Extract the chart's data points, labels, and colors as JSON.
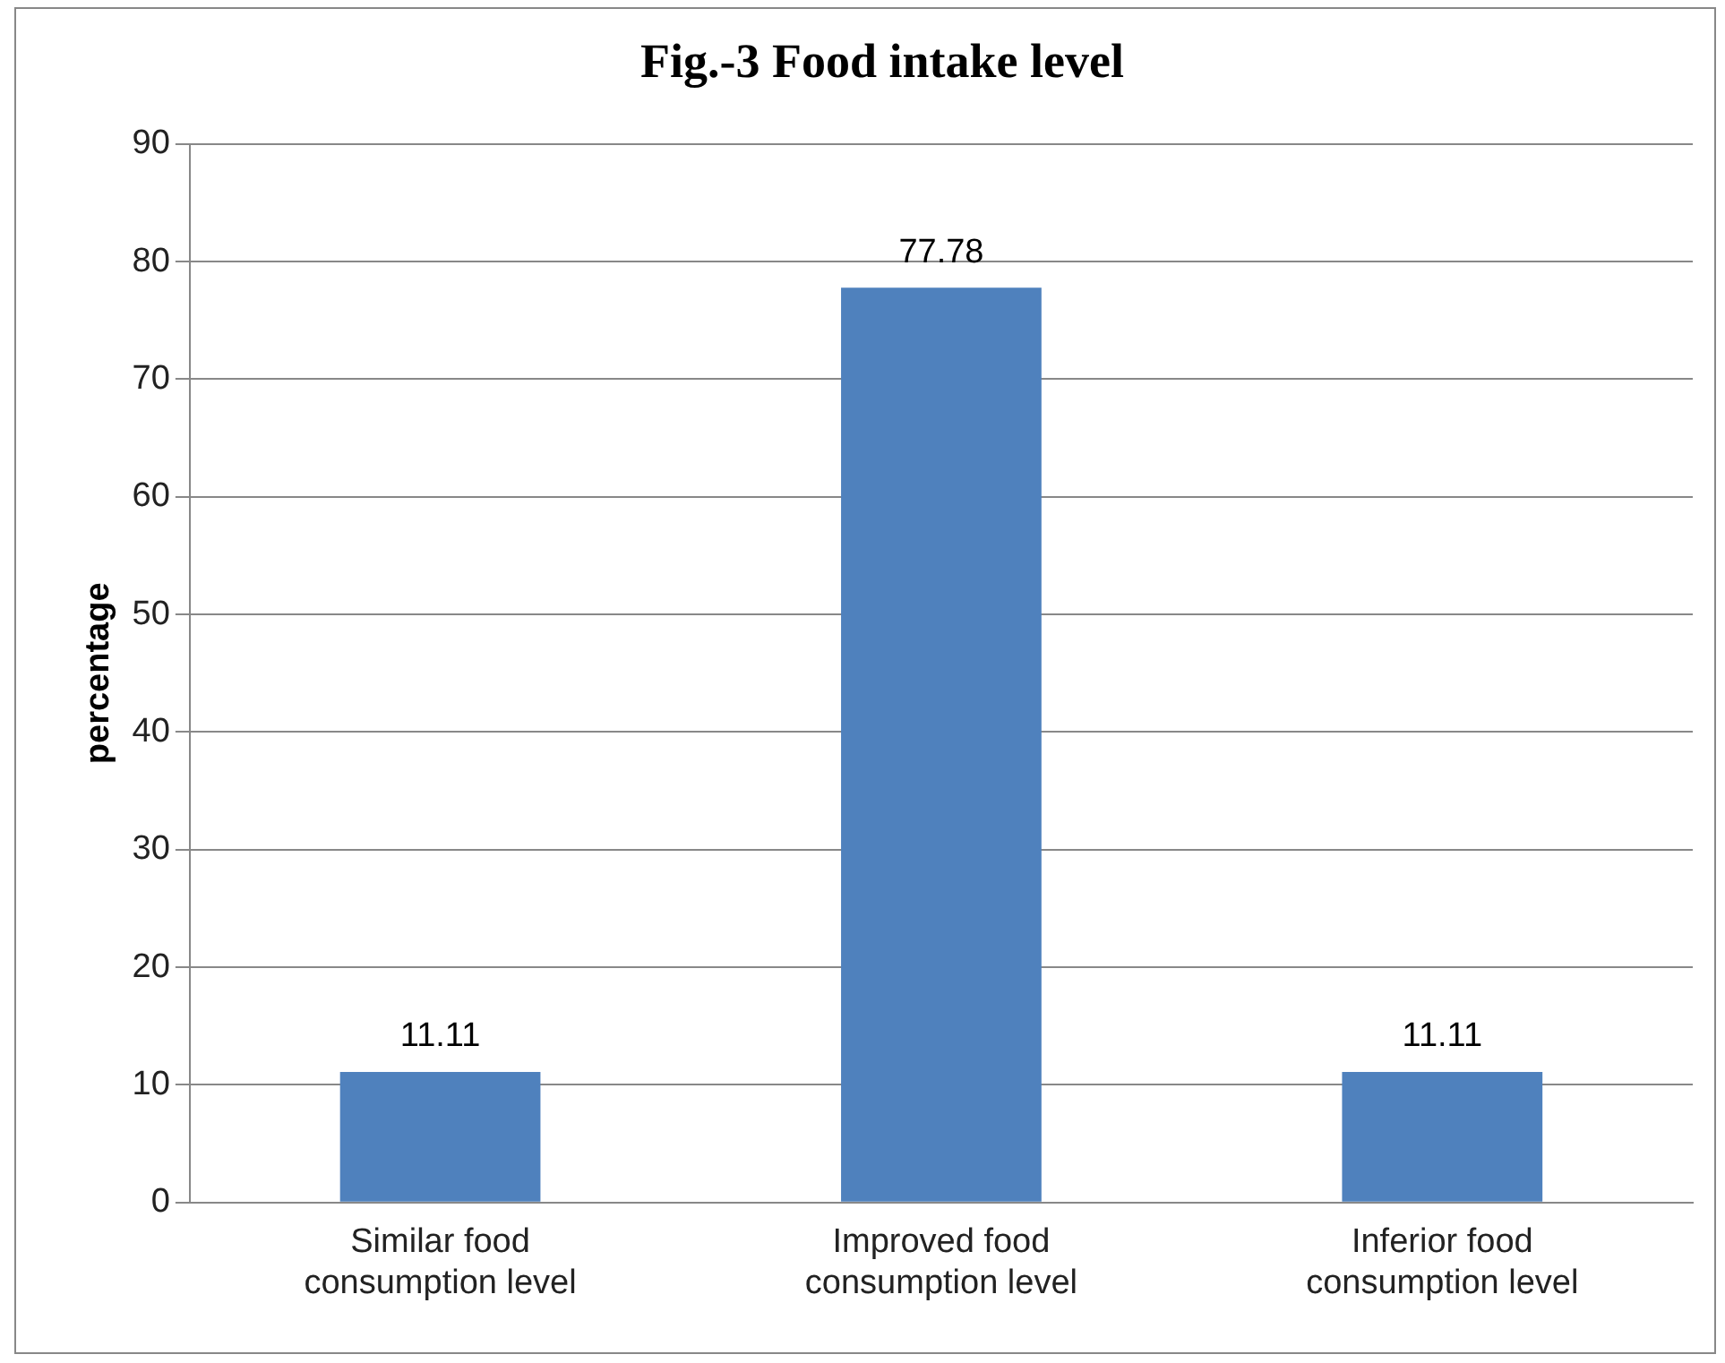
{
  "chart_data": {
    "type": "bar",
    "title": "Fig.-3 Food intake level",
    "ylabel": "percentage",
    "categories": [
      "Similar food consumption level",
      "Improved food consumption level",
      "Inferior food consumption level"
    ],
    "values": [
      11.11,
      77.78,
      11.11
    ],
    "color": "#4f81bd",
    "ylim": [
      0,
      90
    ],
    "yticks": [
      0,
      10,
      20,
      30,
      40,
      50,
      60,
      70,
      80,
      90
    ],
    "grid": "y",
    "data_labels": true,
    "legend": false
  }
}
